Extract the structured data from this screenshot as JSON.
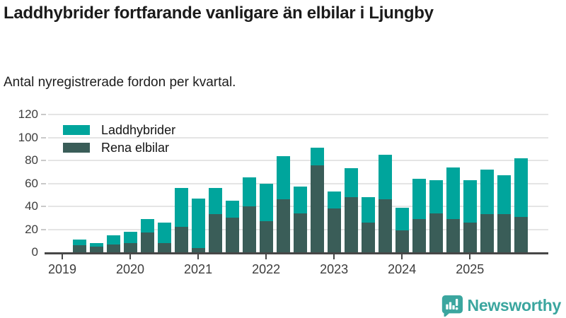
{
  "header": {
    "title": "Laddhybrider fortfarande vanligare än elbilar i Ljungby",
    "subtitle": "Antal nyregistrerade fordon per kvartal."
  },
  "legend": {
    "items": [
      {
        "label": "Laddhybrider"
      },
      {
        "label": "Rena elbilar"
      }
    ]
  },
  "footer": {
    "brand": "Newsworthy",
    "logo_icon": "bar-chart-speech-bubble",
    "brand_color": "#3ba69f"
  },
  "colors": {
    "laddhybrider": "#00a59c",
    "rena_elbilar": "#3a5d58",
    "gridline": "#e5e5e5",
    "axis": "#474747",
    "axis_text": "#3d3d3d"
  },
  "chart_data": {
    "type": "bar",
    "stacked": true,
    "title": "Laddhybrider fortfarande vanligare än elbilar i Ljungby",
    "subtitle": "Antal nyregistrerade fordon per kvartal.",
    "unit": "Antal nyregistrerade fordon per kvartal",
    "categories": [
      "2019 Q2",
      "2019 Q3",
      "2019 Q4",
      "2020 Q1",
      "2020 Q2",
      "2020 Q3",
      "2020 Q4",
      "2021 Q1",
      "2021 Q2",
      "2021 Q3",
      "2021 Q4",
      "2022 Q1",
      "2022 Q2",
      "2022 Q3",
      "2022 Q4",
      "2023 Q1",
      "2023 Q2",
      "2023 Q3",
      "2023 Q4",
      "2024 Q1",
      "2024 Q2",
      "2024 Q3",
      "2024 Q4",
      "2025 Q1",
      "2025 Q2",
      "2025 Q3",
      "2025 Q4"
    ],
    "series": [
      {
        "name": "Laddhybrider",
        "color": "#00a59c",
        "values": [
          5,
          3,
          8,
          10,
          12,
          18,
          34,
          43,
          23,
          15,
          25,
          33,
          38,
          23,
          15,
          15,
          25,
          22,
          39,
          20,
          35,
          29,
          45,
          37,
          39,
          34,
          51
        ]
      },
      {
        "name": "Rena elbilar",
        "color": "#3a5d58",
        "values": [
          6,
          5,
          7,
          8,
          17,
          8,
          22,
          4,
          33,
          30,
          40,
          27,
          46,
          34,
          76,
          38,
          48,
          26,
          46,
          19,
          29,
          34,
          29,
          26,
          33,
          33,
          31
        ]
      }
    ],
    "stack_order_bottom_to_top": [
      "Rena elbilar",
      "Laddhybrider"
    ],
    "totals": [
      11,
      8,
      15,
      18,
      29,
      26,
      56,
      47,
      56,
      45,
      65,
      60,
      84,
      57,
      91,
      53,
      73,
      48,
      85,
      39,
      64,
      63,
      74,
      63,
      72,
      67,
      82
    ],
    "ylim": [
      0,
      120
    ],
    "yticks": [
      0,
      20,
      40,
      60,
      80,
      100,
      120
    ],
    "x_ticks": [
      {
        "label": "2019",
        "quarter_offset": -1
      },
      {
        "label": "2020",
        "quarter_offset": 3
      },
      {
        "label": "2021",
        "quarter_offset": 7
      },
      {
        "label": "2022",
        "quarter_offset": 11
      },
      {
        "label": "2023",
        "quarter_offset": 15
      },
      {
        "label": "2024",
        "quarter_offset": 19
      },
      {
        "label": "2025",
        "quarter_offset": 23
      }
    ],
    "grid": "horizontal",
    "legend_position": "top-left-inside"
  }
}
